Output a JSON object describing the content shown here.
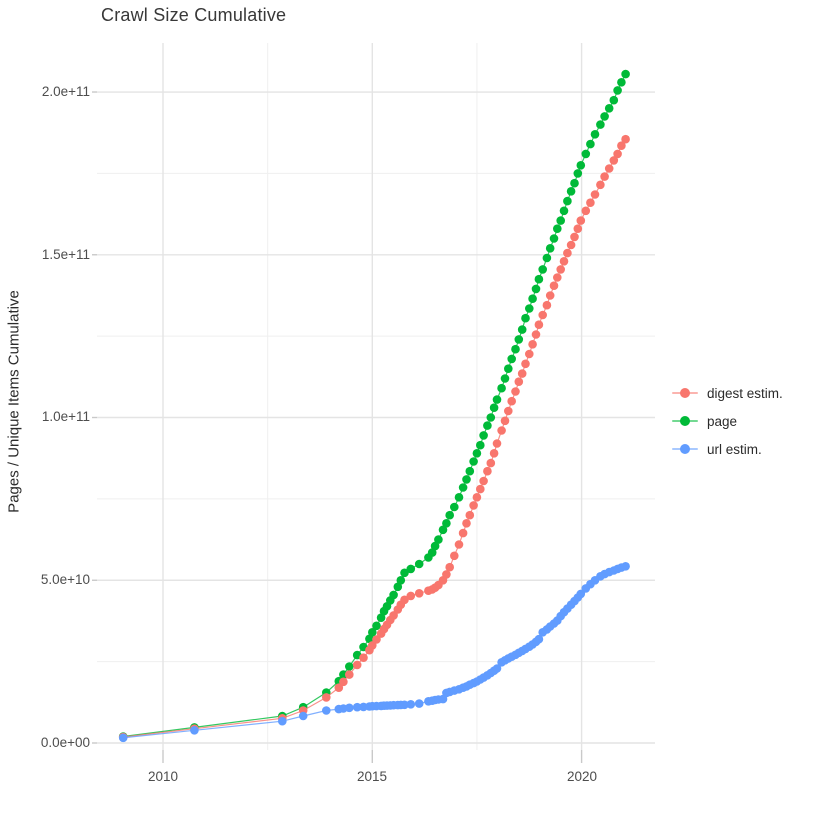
{
  "chart": {
    "title": "Crawl Size Cumulative",
    "ylabel": "Pages / Unique Items Cumulative",
    "xlabel": "",
    "y_tick_labels": [
      "2.0e+11",
      "1.5e+11",
      "1.0e+11",
      "5.0e+10",
      "0.0e+00"
    ],
    "x_tick_labels": [
      "2010",
      "2015",
      "2020"
    ]
  },
  "chart_data": {
    "type": "scatter",
    "title": "Crawl Size Cumulative",
    "xlabel": "",
    "ylabel": "Pages / Unique Items Cumulative",
    "legend_position": "right",
    "grid": true,
    "background": "#ffffff",
    "grid_color_major": "#e4e4e4",
    "grid_color_minor": "#efefef",
    "tick_color": "#c9c9c9",
    "xlim": [
      2008.6,
      2021.8
    ],
    "ylim": [
      0,
      215000000000.0
    ],
    "x_major": [
      2010,
      2015,
      2020
    ],
    "x_minor": [
      2012.5,
      2017.5
    ],
    "y_major": [
      0,
      50000000000.0,
      100000000000.0,
      150000000000.0,
      200000000000.0
    ],
    "y_minor": [
      25000000000.0,
      75000000000.0,
      125000000000.0,
      175000000000.0
    ],
    "x": [
      2009.05,
      2010.75,
      2012.85,
      2013.35,
      2013.9,
      2014.2,
      2014.31,
      2014.45,
      2014.64,
      2014.79,
      2014.93,
      2015.0,
      2015.1,
      2015.21,
      2015.28,
      2015.35,
      2015.43,
      2015.51,
      2015.61,
      2015.68,
      2015.77,
      2015.92,
      2016.12,
      2016.34,
      2016.43,
      2016.5,
      2016.58,
      2016.69,
      2016.77,
      2016.85,
      2016.96,
      2017.07,
      2017.17,
      2017.25,
      2017.33,
      2017.42,
      2017.5,
      2017.58,
      2017.66,
      2017.75,
      2017.83,
      2017.91,
      2017.98,
      2018.09,
      2018.17,
      2018.25,
      2018.33,
      2018.42,
      2018.5,
      2018.58,
      2018.66,
      2018.75,
      2018.83,
      2018.91,
      2018.98,
      2019.07,
      2019.17,
      2019.25,
      2019.34,
      2019.42,
      2019.5,
      2019.58,
      2019.66,
      2019.75,
      2019.83,
      2019.91,
      2019.98,
      2020.1,
      2020.21,
      2020.32,
      2020.45,
      2020.55,
      2020.66,
      2020.77,
      2020.86,
      2020.95,
      2021.05
    ],
    "series": [
      {
        "name": "digest estim.",
        "color": "#F8766D",
        "values": [
          1800000000.0,
          4400000000.0,
          7600000000.0,
          10000000000.0,
          14000000000.0,
          17000000000.0,
          18800000000.0,
          21000000000.0,
          24000000000.0,
          26200000000.0,
          28500000000.0,
          30000000000.0,
          31800000000.0,
          33600000000.0,
          35000000000.0,
          36300000000.0,
          37800000000.0,
          39200000000.0,
          41000000000.0,
          42500000000.0,
          44000000000.0,
          45200000000.0,
          46000000000.0,
          46800000000.0,
          47200000000.0,
          47700000000.0,
          48500000000.0,
          50000000000.0,
          51800000000.0,
          54000000000.0,
          57500000000.0,
          61000000000.0,
          64500000000.0,
          67500000000.0,
          70000000000.0,
          73000000000.0,
          75500000000.0,
          78000000000.0,
          80500000000.0,
          83500000000.0,
          86000000000.0,
          89000000000.0,
          92000000000.0,
          96000000000.0,
          99000000000.0,
          102000000000.0,
          105000000000.0,
          108000000000.0,
          111000000000.0,
          113500000000.0,
          116500000000.0,
          119500000000.0,
          122500000000.0,
          125500000000.0,
          128500000000.0,
          131500000000.0,
          134500000000.0,
          137500000000.0,
          140500000000.0,
          143000000000.0,
          145500000000.0,
          148000000000.0,
          150500000000.0,
          153000000000.0,
          155500000000.0,
          158000000000.0,
          160500000000.0,
          163500000000.0,
          166000000000.0,
          168500000000.0,
          171500000000.0,
          174000000000.0,
          176500000000.0,
          179000000000.0,
          181000000000.0,
          183500000000.0,
          185500000000.0
        ]
      },
      {
        "name": "page",
        "color": "#00BA38",
        "values": [
          2000000000.0,
          4800000000.0,
          8300000000.0,
          11000000000.0,
          15500000000.0,
          19000000000.0,
          21000000000.0,
          23500000000.0,
          27000000000.0,
          29500000000.0,
          32000000000.0,
          34000000000.0,
          36000000000.0,
          38500000000.0,
          40500000000.0,
          42000000000.0,
          43800000000.0,
          45500000000.0,
          48000000000.0,
          50000000000.0,
          52300000000.0,
          53500000000.0,
          55000000000.0,
          57000000000.0,
          58500000000.0,
          60500000000.0,
          62500000000.0,
          65500000000.0,
          67500000000.0,
          70000000000.0,
          72500000000.0,
          75500000000.0,
          78500000000.0,
          81000000000.0,
          83500000000.0,
          86500000000.0,
          89000000000.0,
          91500000000.0,
          94500000000.0,
          97500000000.0,
          100000000000.0,
          103000000000.0,
          105500000000.0,
          109000000000.0,
          112000000000.0,
          115000000000.0,
          118000000000.0,
          121000000000.0,
          124000000000.0,
          127000000000.0,
          130500000000.0,
          133500000000.0,
          136500000000.0,
          139500000000.0,
          142500000000.0,
          145500000000.0,
          149000000000.0,
          152000000000.0,
          155000000000.0,
          158000000000.0,
          160500000000.0,
          163500000000.0,
          166500000000.0,
          169500000000.0,
          172000000000.0,
          175000000000.0,
          177500000000.0,
          181000000000.0,
          184000000000.0,
          187000000000.0,
          190000000000.0,
          192500000000.0,
          195000000000.0,
          197500000000.0,
          200500000000.0,
          203000000000.0,
          205500000000.0
        ]
      },
      {
        "name": "url estim.",
        "color": "#619CFF",
        "values": [
          1600000000.0,
          3900000000.0,
          6700000000.0,
          8300000000.0,
          10000000000.0,
          10400000000.0,
          10600000000.0,
          10800000000.0,
          11000000000.0,
          11100000000.0,
          11200000000.0,
          11300000000.0,
          11350000000.0,
          11400000000.0,
          11450000000.0,
          11500000000.0,
          11550000000.0,
          11600000000.0,
          11650000000.0,
          11700000000.0,
          11750000000.0,
          11900000000.0,
          12100000000.0,
          12800000000.0,
          13000000000.0,
          13200000000.0,
          13350000000.0,
          13500000000.0,
          15400000000.0,
          15700000000.0,
          16100000000.0,
          16500000000.0,
          17000000000.0,
          17400000000.0,
          17900000000.0,
          18400000000.0,
          18900000000.0,
          19500000000.0,
          20100000000.0,
          20800000000.0,
          21500000000.0,
          22200000000.0,
          22900000000.0,
          24800000000.0,
          25400000000.0,
          26000000000.0,
          26500000000.0,
          27100000000.0,
          27700000000.0,
          28300000000.0,
          28900000000.0,
          29600000000.0,
          30300000000.0,
          31100000000.0,
          31900000000.0,
          34000000000.0,
          34900000000.0,
          35800000000.0,
          36700000000.0,
          37600000000.0,
          39000000000.0,
          40200000000.0,
          41300000000.0,
          42500000000.0,
          43600000000.0,
          44700000000.0,
          45800000000.0,
          47500000000.0,
          48800000000.0,
          50000000000.0,
          51200000000.0,
          51900000000.0,
          52500000000.0,
          53000000000.0,
          53500000000.0,
          53900000000.0,
          54300000000.0
        ]
      }
    ]
  }
}
